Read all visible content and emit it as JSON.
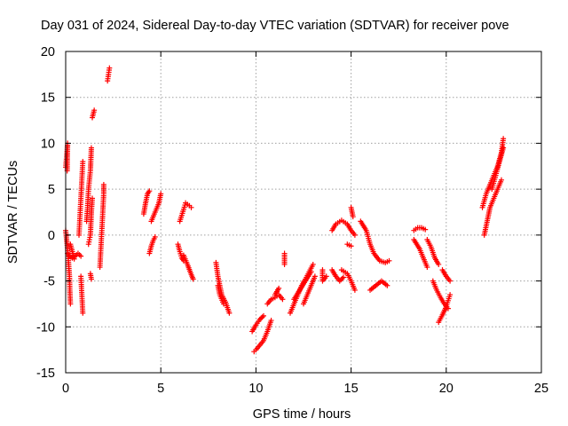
{
  "chart_data": {
    "type": "scatter",
    "title": "Day 031 of 2024, Sidereal Day-to-day VTEC variation (SDTVAR) for receiver pove",
    "xlabel": "GPS time / hours",
    "ylabel": "SDTVAR / TECUs",
    "xlim": [
      0,
      25
    ],
    "ylim": [
      -15,
      20
    ],
    "xticks": [
      0,
      5,
      10,
      15,
      20,
      25
    ],
    "yticks": [
      -15,
      -10,
      -5,
      0,
      5,
      10,
      15,
      20
    ],
    "grid": true,
    "marker": "+",
    "colors": {
      "series": "#ff0000",
      "grid": "#a0a0a0",
      "axis": "#000000"
    },
    "series": [
      {
        "name": "SDTVAR",
        "segments": [
          [
            [
              0.0,
              7.4
            ],
            [
              0.05,
              8.5
            ],
            [
              0.1,
              10.0
            ],
            [
              0.08,
              7.0
            ]
          ],
          [
            [
              0.0,
              0.5
            ],
            [
              0.05,
              -0.5
            ],
            [
              0.1,
              -1.5
            ],
            [
              0.15,
              -3.0
            ],
            [
              0.2,
              -4.5
            ],
            [
              0.22,
              -6.0
            ],
            [
              0.25,
              -7.5
            ]
          ],
          [
            [
              0.1,
              -2.0
            ],
            [
              0.2,
              -2.3
            ],
            [
              0.35,
              -2.5
            ],
            [
              0.5,
              -2.3
            ],
            [
              0.65,
              -2.0
            ],
            [
              0.8,
              -2.3
            ]
          ],
          [
            [
              0.25,
              -1.0
            ],
            [
              0.35,
              -1.8
            ],
            [
              0.45,
              -2.6
            ]
          ],
          [
            [
              0.7,
              0.0
            ],
            [
              0.75,
              2.0
            ],
            [
              0.8,
              4.0
            ],
            [
              0.85,
              6.0
            ],
            [
              0.9,
              8.0
            ]
          ],
          [
            [
              0.8,
              -4.5
            ],
            [
              0.85,
              -6.5
            ],
            [
              0.9,
              -8.5
            ]
          ],
          [
            [
              1.1,
              1.5
            ],
            [
              1.15,
              3.0
            ],
            [
              1.2,
              5.0
            ],
            [
              1.3,
              7.0
            ],
            [
              1.35,
              9.5
            ]
          ],
          [
            [
              1.2,
              -1.0
            ],
            [
              1.25,
              -0.5
            ],
            [
              1.3,
              0.0
            ],
            [
              1.35,
              2.5
            ],
            [
              1.4,
              4.0
            ]
          ],
          [
            [
              1.3,
              -4.2
            ],
            [
              1.35,
              -4.8
            ]
          ],
          [
            [
              1.4,
              12.8
            ],
            [
              1.45,
              13.2
            ],
            [
              1.5,
              13.6
            ]
          ],
          [
            [
              1.8,
              -3.5
            ],
            [
              1.85,
              -1.5
            ],
            [
              1.9,
              0.5
            ],
            [
              1.95,
              2.5
            ],
            [
              2.0,
              4.5
            ],
            [
              2.0,
              5.5
            ]
          ],
          [
            [
              2.2,
              16.8
            ],
            [
              2.25,
              17.5
            ],
            [
              2.3,
              18.2
            ]
          ],
          [
            [
              4.1,
              2.3
            ],
            [
              4.2,
              3.5
            ],
            [
              4.3,
              4.5
            ],
            [
              4.4,
              4.8
            ]
          ],
          [
            [
              4.4,
              -2.0
            ],
            [
              4.5,
              -1.2
            ],
            [
              4.6,
              -0.6
            ],
            [
              4.7,
              -0.2
            ]
          ],
          [
            [
              4.5,
              1.5
            ],
            [
              4.7,
              2.5
            ],
            [
              4.9,
              3.5
            ],
            [
              5.0,
              4.5
            ]
          ],
          [
            [
              5.9,
              -1.0
            ],
            [
              6.0,
              -1.8
            ],
            [
              6.1,
              -2.5
            ],
            [
              6.2,
              -2.8
            ]
          ],
          [
            [
              6.0,
              1.5
            ],
            [
              6.2,
              2.8
            ],
            [
              6.3,
              3.5
            ],
            [
              6.5,
              3.2
            ],
            [
              6.6,
              3.0
            ]
          ],
          [
            [
              6.2,
              -2.2
            ],
            [
              6.4,
              -3.2
            ],
            [
              6.6,
              -4.3
            ],
            [
              6.7,
              -4.8
            ]
          ],
          [
            [
              7.9,
              -3.0
            ],
            [
              8.0,
              -4.5
            ],
            [
              8.1,
              -5.5
            ],
            [
              8.2,
              -6.5
            ],
            [
              8.4,
              -7.3
            ],
            [
              8.6,
              -8.5
            ]
          ],
          [
            [
              8.0,
              -5.5
            ],
            [
              8.1,
              -6.5
            ],
            [
              8.3,
              -7.5
            ]
          ],
          [
            [
              9.9,
              -12.7
            ],
            [
              10.0,
              -12.5
            ],
            [
              10.2,
              -12.0
            ],
            [
              10.4,
              -11.5
            ],
            [
              10.6,
              -10.5
            ],
            [
              10.8,
              -9.3
            ]
          ],
          [
            [
              9.8,
              -10.5
            ],
            [
              10.0,
              -9.8
            ],
            [
              10.2,
              -9.2
            ],
            [
              10.4,
              -8.8
            ]
          ],
          [
            [
              10.6,
              -7.5
            ],
            [
              10.8,
              -7.0
            ],
            [
              11.0,
              -6.8
            ],
            [
              11.2,
              -6.5
            ],
            [
              11.4,
              -7.0
            ]
          ],
          [
            [
              11.0,
              -6.5
            ],
            [
              11.2,
              -5.8
            ]
          ],
          [
            [
              11.5,
              -2.0
            ],
            [
              11.5,
              -3.2
            ]
          ],
          [
            [
              11.8,
              -8.5
            ],
            [
              12.0,
              -7.5
            ],
            [
              12.2,
              -6.5
            ],
            [
              12.4,
              -5.5
            ],
            [
              12.6,
              -4.8
            ],
            [
              12.8,
              -4.0
            ],
            [
              13.0,
              -3.2
            ]
          ],
          [
            [
              12.0,
              -7.0
            ],
            [
              12.3,
              -6.0
            ],
            [
              12.6,
              -5.0
            ],
            [
              12.9,
              -4.0
            ]
          ],
          [
            [
              12.5,
              -7.5
            ],
            [
              12.7,
              -6.5
            ],
            [
              12.9,
              -5.5
            ],
            [
              13.1,
              -4.5
            ]
          ],
          [
            [
              13.5,
              -3.8
            ],
            [
              13.5,
              -5.0
            ],
            [
              13.7,
              -4.5
            ]
          ],
          [
            [
              14.0,
              0.5
            ],
            [
              14.2,
              1.2
            ],
            [
              14.5,
              1.6
            ],
            [
              14.8,
              1.2
            ],
            [
              15.0,
              0.5
            ],
            [
              15.2,
              0.0
            ]
          ],
          [
            [
              14.0,
              -3.8
            ],
            [
              14.2,
              -4.5
            ],
            [
              14.4,
              -5.0
            ],
            [
              14.6,
              -4.6
            ]
          ],
          [
            [
              14.5,
              -3.8
            ],
            [
              14.8,
              -4.2
            ],
            [
              15.0,
              -5.0
            ],
            [
              15.2,
              -6.0
            ]
          ],
          [
            [
              14.8,
              -1.0
            ],
            [
              15.0,
              -1.2
            ]
          ],
          [
            [
              15.0,
              3.0
            ],
            [
              15.1,
              2.0
            ]
          ],
          [
            [
              15.5,
              1.5
            ],
            [
              15.8,
              0.5
            ],
            [
              16.0,
              -1.0
            ],
            [
              16.2,
              -2.0
            ],
            [
              16.5,
              -2.8
            ],
            [
              16.8,
              -3.0
            ],
            [
              17.0,
              -2.8
            ]
          ],
          [
            [
              16.0,
              -6.0
            ],
            [
              16.3,
              -5.5
            ],
            [
              16.6,
              -5.0
            ],
            [
              16.9,
              -5.5
            ]
          ],
          [
            [
              18.3,
              0.5
            ],
            [
              18.5,
              0.8
            ],
            [
              18.7,
              0.8
            ],
            [
              18.9,
              0.6
            ]
          ],
          [
            [
              18.3,
              -0.5
            ],
            [
              18.6,
              -1.5
            ],
            [
              18.8,
              -2.5
            ],
            [
              19.0,
              -3.5
            ]
          ],
          [
            [
              19.0,
              -0.5
            ],
            [
              19.2,
              -1.3
            ],
            [
              19.4,
              -2.5
            ],
            [
              19.6,
              -3.2
            ]
          ],
          [
            [
              19.3,
              -5.0
            ],
            [
              19.5,
              -6.0
            ],
            [
              19.7,
              -6.8
            ],
            [
              19.9,
              -7.5
            ],
            [
              20.1,
              -8.0
            ]
          ],
          [
            [
              19.6,
              -9.5
            ],
            [
              19.8,
              -8.7
            ],
            [
              20.0,
              -7.8
            ],
            [
              20.2,
              -6.5
            ]
          ],
          [
            [
              19.8,
              -3.8
            ],
            [
              20.0,
              -4.5
            ],
            [
              20.2,
              -5.0
            ]
          ],
          [
            [
              21.9,
              3.0
            ],
            [
              22.1,
              4.5
            ],
            [
              22.3,
              5.5
            ],
            [
              22.5,
              6.5
            ],
            [
              22.7,
              7.5
            ],
            [
              22.9,
              9.0
            ],
            [
              23.0,
              10.5
            ]
          ],
          [
            [
              22.0,
              0.0
            ],
            [
              22.1,
              1.0
            ],
            [
              22.2,
              2.0
            ],
            [
              22.3,
              3.0
            ],
            [
              22.5,
              4.0
            ],
            [
              22.7,
              5.0
            ],
            [
              22.9,
              6.0
            ]
          ],
          [
            [
              22.4,
              5.0
            ],
            [
              22.6,
              6.5
            ],
            [
              22.8,
              8.0
            ],
            [
              23.0,
              9.5
            ]
          ]
        ]
      }
    ]
  }
}
